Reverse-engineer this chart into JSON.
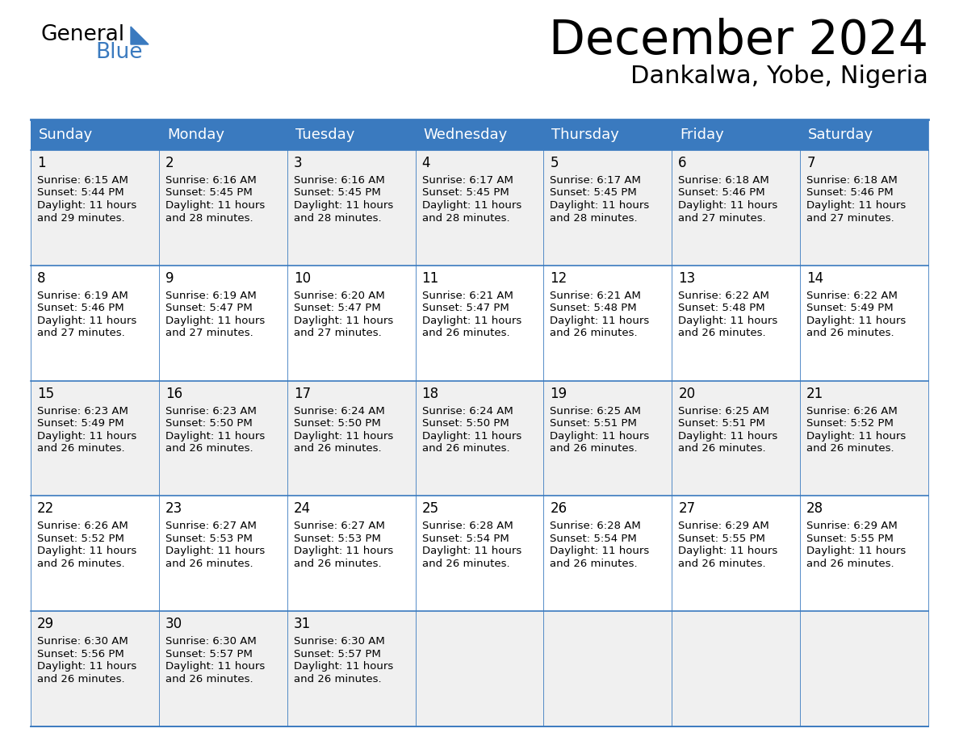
{
  "title": "December 2024",
  "subtitle": "Dankalwa, Yobe, Nigeria",
  "header_color": "#3a7abf",
  "header_text_color": "#ffffff",
  "cell_bg_even": "#f0f0f0",
  "cell_bg_odd": "#ffffff",
  "border_color": "#3a7abf",
  "row_line_color": "#3a7abf",
  "day_names": [
    "Sunday",
    "Monday",
    "Tuesday",
    "Wednesday",
    "Thursday",
    "Friday",
    "Saturday"
  ],
  "days": [
    {
      "day": 1,
      "col": 0,
      "row": 0,
      "sunrise": "6:15 AM",
      "sunset": "5:44 PM",
      "daylight_hours": 11,
      "daylight_minutes": 29
    },
    {
      "day": 2,
      "col": 1,
      "row": 0,
      "sunrise": "6:16 AM",
      "sunset": "5:45 PM",
      "daylight_hours": 11,
      "daylight_minutes": 28
    },
    {
      "day": 3,
      "col": 2,
      "row": 0,
      "sunrise": "6:16 AM",
      "sunset": "5:45 PM",
      "daylight_hours": 11,
      "daylight_minutes": 28
    },
    {
      "day": 4,
      "col": 3,
      "row": 0,
      "sunrise": "6:17 AM",
      "sunset": "5:45 PM",
      "daylight_hours": 11,
      "daylight_minutes": 28
    },
    {
      "day": 5,
      "col": 4,
      "row": 0,
      "sunrise": "6:17 AM",
      "sunset": "5:45 PM",
      "daylight_hours": 11,
      "daylight_minutes": 28
    },
    {
      "day": 6,
      "col": 5,
      "row": 0,
      "sunrise": "6:18 AM",
      "sunset": "5:46 PM",
      "daylight_hours": 11,
      "daylight_minutes": 27
    },
    {
      "day": 7,
      "col": 6,
      "row": 0,
      "sunrise": "6:18 AM",
      "sunset": "5:46 PM",
      "daylight_hours": 11,
      "daylight_minutes": 27
    },
    {
      "day": 8,
      "col": 0,
      "row": 1,
      "sunrise": "6:19 AM",
      "sunset": "5:46 PM",
      "daylight_hours": 11,
      "daylight_minutes": 27
    },
    {
      "day": 9,
      "col": 1,
      "row": 1,
      "sunrise": "6:19 AM",
      "sunset": "5:47 PM",
      "daylight_hours": 11,
      "daylight_minutes": 27
    },
    {
      "day": 10,
      "col": 2,
      "row": 1,
      "sunrise": "6:20 AM",
      "sunset": "5:47 PM",
      "daylight_hours": 11,
      "daylight_minutes": 27
    },
    {
      "day": 11,
      "col": 3,
      "row": 1,
      "sunrise": "6:21 AM",
      "sunset": "5:47 PM",
      "daylight_hours": 11,
      "daylight_minutes": 26
    },
    {
      "day": 12,
      "col": 4,
      "row": 1,
      "sunrise": "6:21 AM",
      "sunset": "5:48 PM",
      "daylight_hours": 11,
      "daylight_minutes": 26
    },
    {
      "day": 13,
      "col": 5,
      "row": 1,
      "sunrise": "6:22 AM",
      "sunset": "5:48 PM",
      "daylight_hours": 11,
      "daylight_minutes": 26
    },
    {
      "day": 14,
      "col": 6,
      "row": 1,
      "sunrise": "6:22 AM",
      "sunset": "5:49 PM",
      "daylight_hours": 11,
      "daylight_minutes": 26
    },
    {
      "day": 15,
      "col": 0,
      "row": 2,
      "sunrise": "6:23 AM",
      "sunset": "5:49 PM",
      "daylight_hours": 11,
      "daylight_minutes": 26
    },
    {
      "day": 16,
      "col": 1,
      "row": 2,
      "sunrise": "6:23 AM",
      "sunset": "5:50 PM",
      "daylight_hours": 11,
      "daylight_minutes": 26
    },
    {
      "day": 17,
      "col": 2,
      "row": 2,
      "sunrise": "6:24 AM",
      "sunset": "5:50 PM",
      "daylight_hours": 11,
      "daylight_minutes": 26
    },
    {
      "day": 18,
      "col": 3,
      "row": 2,
      "sunrise": "6:24 AM",
      "sunset": "5:50 PM",
      "daylight_hours": 11,
      "daylight_minutes": 26
    },
    {
      "day": 19,
      "col": 4,
      "row": 2,
      "sunrise": "6:25 AM",
      "sunset": "5:51 PM",
      "daylight_hours": 11,
      "daylight_minutes": 26
    },
    {
      "day": 20,
      "col": 5,
      "row": 2,
      "sunrise": "6:25 AM",
      "sunset": "5:51 PM",
      "daylight_hours": 11,
      "daylight_minutes": 26
    },
    {
      "day": 21,
      "col": 6,
      "row": 2,
      "sunrise": "6:26 AM",
      "sunset": "5:52 PM",
      "daylight_hours": 11,
      "daylight_minutes": 26
    },
    {
      "day": 22,
      "col": 0,
      "row": 3,
      "sunrise": "6:26 AM",
      "sunset": "5:52 PM",
      "daylight_hours": 11,
      "daylight_minutes": 26
    },
    {
      "day": 23,
      "col": 1,
      "row": 3,
      "sunrise": "6:27 AM",
      "sunset": "5:53 PM",
      "daylight_hours": 11,
      "daylight_minutes": 26
    },
    {
      "day": 24,
      "col": 2,
      "row": 3,
      "sunrise": "6:27 AM",
      "sunset": "5:53 PM",
      "daylight_hours": 11,
      "daylight_minutes": 26
    },
    {
      "day": 25,
      "col": 3,
      "row": 3,
      "sunrise": "6:28 AM",
      "sunset": "5:54 PM",
      "daylight_hours": 11,
      "daylight_minutes": 26
    },
    {
      "day": 26,
      "col": 4,
      "row": 3,
      "sunrise": "6:28 AM",
      "sunset": "5:54 PM",
      "daylight_hours": 11,
      "daylight_minutes": 26
    },
    {
      "day": 27,
      "col": 5,
      "row": 3,
      "sunrise": "6:29 AM",
      "sunset": "5:55 PM",
      "daylight_hours": 11,
      "daylight_minutes": 26
    },
    {
      "day": 28,
      "col": 6,
      "row": 3,
      "sunrise": "6:29 AM",
      "sunset": "5:55 PM",
      "daylight_hours": 11,
      "daylight_minutes": 26
    },
    {
      "day": 29,
      "col": 0,
      "row": 4,
      "sunrise": "6:30 AM",
      "sunset": "5:56 PM",
      "daylight_hours": 11,
      "daylight_minutes": 26
    },
    {
      "day": 30,
      "col": 1,
      "row": 4,
      "sunrise": "6:30 AM",
      "sunset": "5:57 PM",
      "daylight_hours": 11,
      "daylight_minutes": 26
    },
    {
      "day": 31,
      "col": 2,
      "row": 4,
      "sunrise": "6:30 AM",
      "sunset": "5:57 PM",
      "daylight_hours": 11,
      "daylight_minutes": 26
    }
  ]
}
